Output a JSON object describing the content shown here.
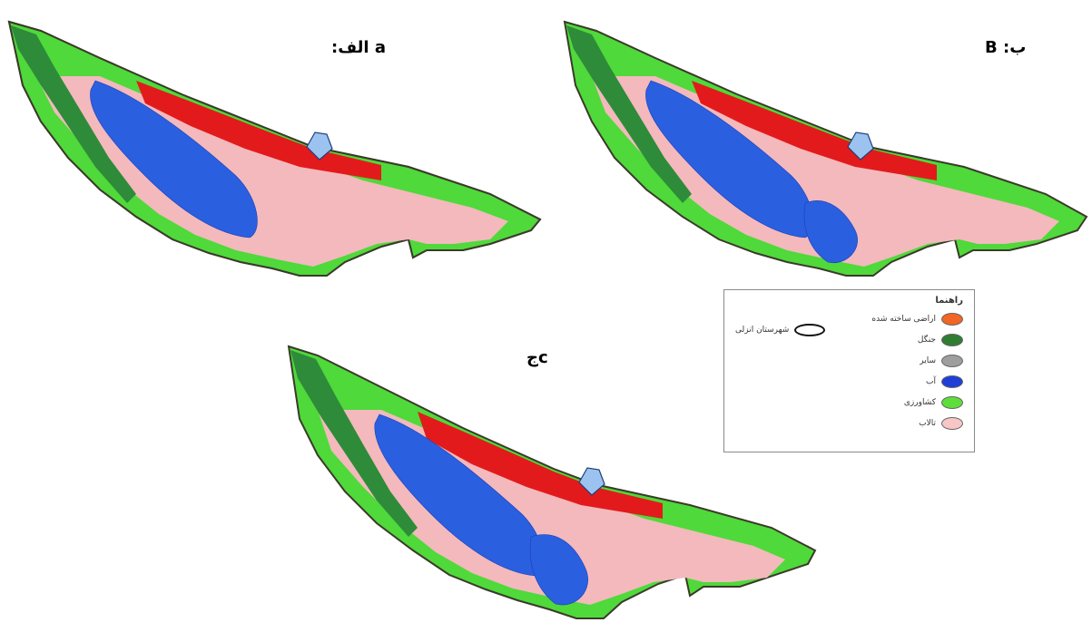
{
  "panels": [
    {
      "label": "a الف:"
    },
    {
      "label": "ب: B"
    },
    {
      "label": "cج"
    }
  ],
  "legend": {
    "title": "راهنما",
    "items": [
      {
        "label": "اراضی ساخته شده",
        "color": "#f26522"
      },
      {
        "label": "جنگل",
        "color": "#2e7d32"
      },
      {
        "label": "سایر",
        "color": "#9e9e9e"
      },
      {
        "label": "آب",
        "color": "#1f3fd6"
      },
      {
        "label": "کشاورزی",
        "color": "#5dde3a"
      },
      {
        "label": "تالاب",
        "color": "#f7c6c6"
      }
    ],
    "city_label": "شهرستان انزلی"
  },
  "colors": {
    "built": "#e31a1c",
    "forest": "#2e8b3a",
    "other": "#8f9a8f",
    "water": "#2a5fe0",
    "agri": "#4fd93a",
    "wetland": "#f3b9bc",
    "city": "#9cc3f0",
    "outline": "#3a3a2a"
  }
}
